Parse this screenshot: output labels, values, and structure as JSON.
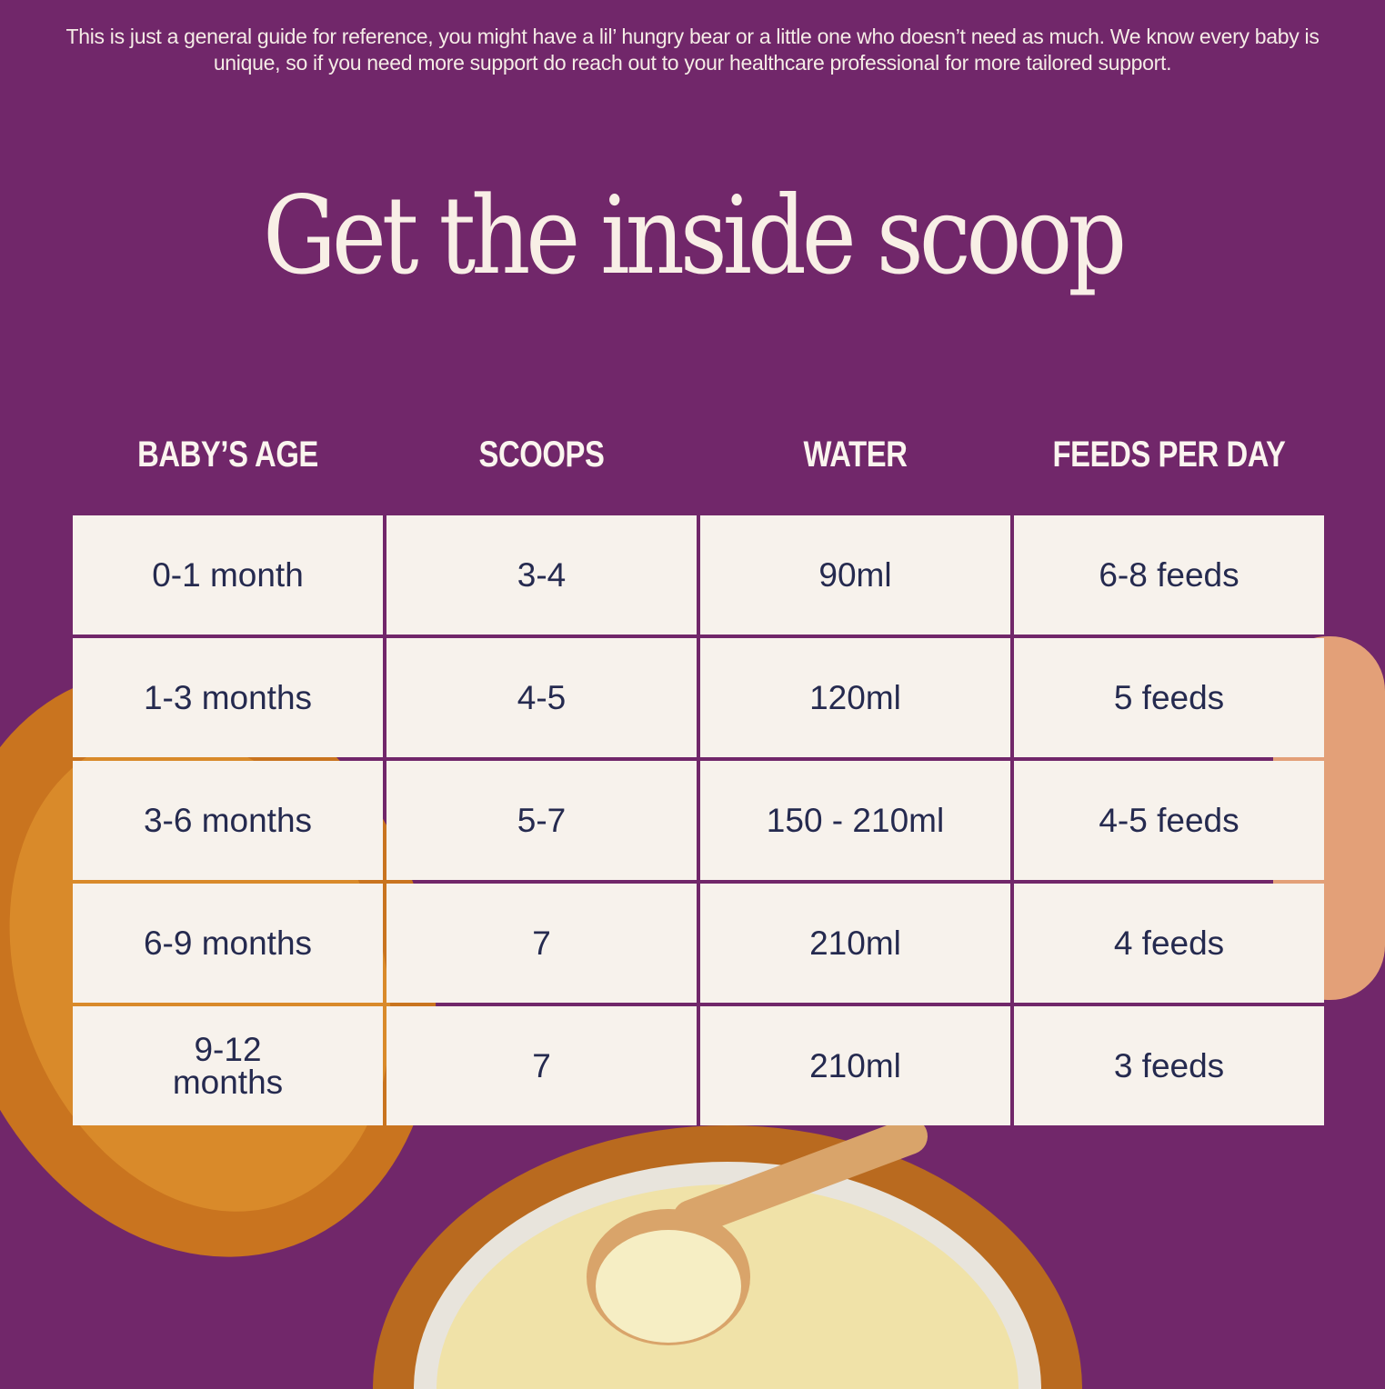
{
  "intro": "This is just a general guide for reference, you might have a lil’ hungry bear or a little one who doesn’t need as much. We know every baby is unique, so if you need more support do reach out to your healthcare professional for more tailored support.",
  "title": "Get the inside scoop",
  "table": {
    "headers": [
      "BABY’S AGE",
      "SCOOPS",
      "WATER",
      "FEEDS PER DAY"
    ],
    "rows": [
      [
        "0-1 month",
        "3-4",
        "90ml",
        "6-8 feeds"
      ],
      [
        "1-3 months",
        "4-5",
        "120ml",
        "5 feeds"
      ],
      [
        "3-6 months",
        "5-7",
        "150 - 210ml",
        "4-5 feeds"
      ],
      [
        "6-9 months",
        "7",
        "210ml",
        "4 feeds"
      ],
      [
        "9-12 months",
        "7",
        "210ml",
        "3 feeds"
      ]
    ]
  },
  "colors": {
    "background": "#71276a",
    "cell": "#f7f2ec",
    "cell_text": "#252a4f",
    "heading_text": "#f8efe6"
  }
}
